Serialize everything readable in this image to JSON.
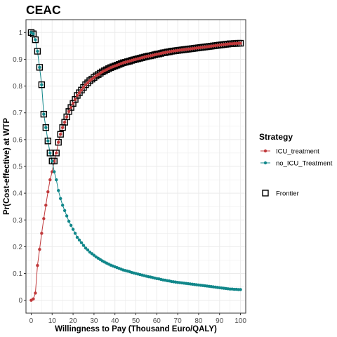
{
  "chart_data": {
    "type": "line",
    "title": "CEAC",
    "xlabel": "Willingness to Pay (Thousand Euro/QALY)",
    "ylabel": "Pr(Cost-effective) at WTP",
    "xlim": [
      -2.5,
      102.5
    ],
    "ylim": [
      -0.048,
      1.048
    ],
    "xticks": [
      0,
      10,
      20,
      30,
      40,
      50,
      60,
      70,
      80,
      90,
      100
    ],
    "yticks": [
      0,
      0.1,
      0.2,
      0.3,
      0.4,
      0.5,
      0.6,
      0.7,
      0.8,
      0.9,
      1
    ],
    "grid": true,
    "legend_position": "right",
    "legend_title": "Strategy",
    "frontier_label": "Frontier",
    "x": [
      0,
      1,
      2,
      3,
      4,
      5,
      6,
      7,
      8,
      9,
      10,
      11,
      12,
      13,
      14,
      15,
      16,
      17,
      18,
      19,
      20,
      21,
      22,
      23,
      24,
      25,
      26,
      27,
      28,
      29,
      30,
      31,
      32,
      33,
      34,
      35,
      36,
      37,
      38,
      39,
      40,
      41,
      42,
      43,
      44,
      45,
      46,
      47,
      48,
      49,
      50,
      51,
      52,
      53,
      54,
      55,
      56,
      57,
      58,
      59,
      60,
      61,
      62,
      63,
      64,
      65,
      66,
      67,
      68,
      69,
      70,
      71,
      72,
      73,
      74,
      75,
      76,
      77,
      78,
      79,
      80,
      81,
      82,
      83,
      84,
      85,
      86,
      87,
      88,
      89,
      90,
      91,
      92,
      93,
      94,
      95,
      96,
      97,
      98,
      99,
      100
    ],
    "series": [
      {
        "name": "ICU_treatment",
        "color": "#c0393b",
        "values": [
          0,
          0.005,
          0.027,
          0.13,
          0.19,
          0.25,
          0.305,
          0.355,
          0.405,
          0.45,
          0.48,
          0.52,
          0.55,
          0.59,
          0.62,
          0.645,
          0.665,
          0.685,
          0.705,
          0.72,
          0.735,
          0.75,
          0.765,
          0.775,
          0.785,
          0.795,
          0.805,
          0.812,
          0.82,
          0.826,
          0.832,
          0.838,
          0.843,
          0.848,
          0.853,
          0.857,
          0.861,
          0.865,
          0.869,
          0.872,
          0.875,
          0.878,
          0.881,
          0.884,
          0.887,
          0.889,
          0.891,
          0.893,
          0.896,
          0.898,
          0.9,
          0.902,
          0.904,
          0.906,
          0.908,
          0.91,
          0.912,
          0.913,
          0.915,
          0.917,
          0.919,
          0.92,
          0.922,
          0.924,
          0.925,
          0.927,
          0.928,
          0.93,
          0.931,
          0.932,
          0.933,
          0.934,
          0.935,
          0.936,
          0.937,
          0.938,
          0.939,
          0.94,
          0.941,
          0.942,
          0.943,
          0.944,
          0.945,
          0.946,
          0.947,
          0.948,
          0.949,
          0.95,
          0.951,
          0.952,
          0.953,
          0.954,
          0.955,
          0.956,
          0.957,
          0.958,
          0.958,
          0.959,
          0.959,
          0.96,
          0.96
        ]
      },
      {
        "name": "no_ICU_Treatment",
        "color": "#11878a",
        "values": [
          1,
          0.995,
          0.973,
          0.93,
          0.87,
          0.805,
          0.695,
          0.645,
          0.595,
          0.55,
          0.52,
          0.48,
          0.45,
          0.41,
          0.38,
          0.355,
          0.335,
          0.315,
          0.295,
          0.28,
          0.265,
          0.25,
          0.235,
          0.225,
          0.215,
          0.205,
          0.195,
          0.188,
          0.18,
          0.174,
          0.168,
          0.162,
          0.157,
          0.152,
          0.147,
          0.143,
          0.139,
          0.135,
          0.131,
          0.128,
          0.125,
          0.122,
          0.119,
          0.116,
          0.113,
          0.111,
          0.109,
          0.107,
          0.104,
          0.102,
          0.1,
          0.098,
          0.096,
          0.094,
          0.092,
          0.09,
          0.088,
          0.087,
          0.085,
          0.083,
          0.081,
          0.08,
          0.078,
          0.076,
          0.075,
          0.073,
          0.072,
          0.07,
          0.069,
          0.068,
          0.067,
          0.066,
          0.065,
          0.064,
          0.063,
          0.062,
          0.061,
          0.06,
          0.059,
          0.058,
          0.057,
          0.056,
          0.055,
          0.054,
          0.053,
          0.052,
          0.051,
          0.05,
          0.049,
          0.048,
          0.047,
          0.046,
          0.045,
          0.044,
          0.043,
          0.042,
          0.042,
          0.041,
          0.041,
          0.04,
          0.04
        ]
      }
    ]
  }
}
